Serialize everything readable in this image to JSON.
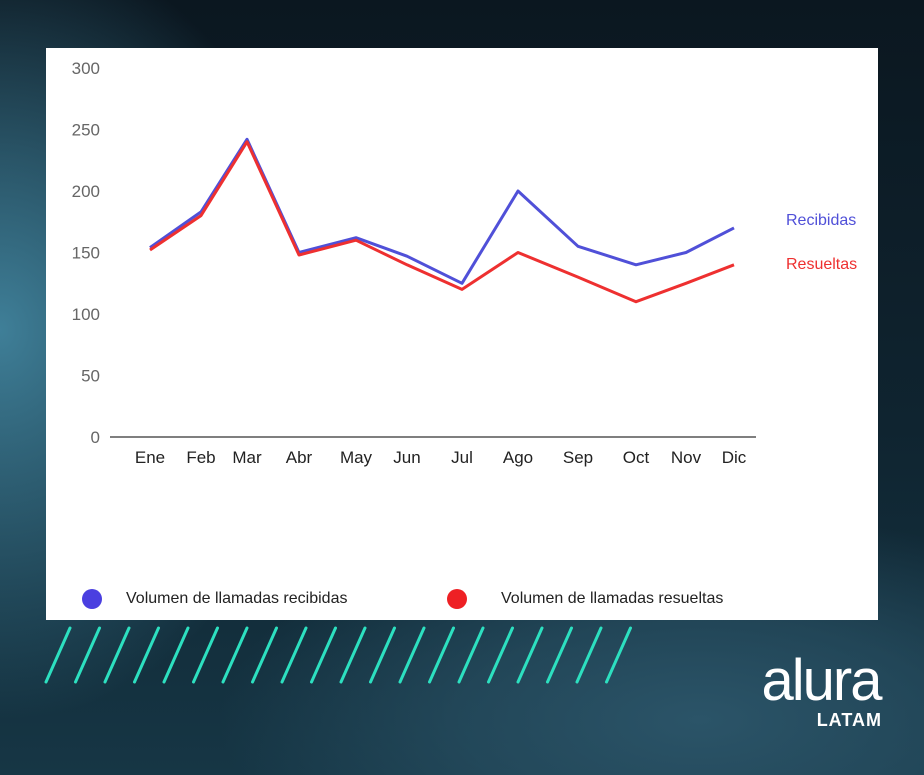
{
  "colors": {
    "recibidas": "#5050d8",
    "resueltas": "#ee3030",
    "legend_recibidas": "#4a3fe0",
    "legend_resueltas": "#ee2024",
    "stripes": "#2de0c0",
    "axis": "#555555"
  },
  "chart_data": {
    "type": "line",
    "categories": [
      "Ene",
      "Feb",
      "Mar",
      "Abr",
      "May",
      "Jun",
      "Jul",
      "Ago",
      "Sep",
      "Oct",
      "Nov",
      "Dic"
    ],
    "yticks": [
      "300",
      "250",
      "200",
      "150",
      "100",
      "50",
      "0"
    ],
    "ylim": [
      0,
      300
    ],
    "grid": false,
    "series": [
      {
        "name": "Recibidas",
        "legend": "Volumen de llamadas recibidas",
        "values": [
          154,
          183,
          242,
          150,
          162,
          147,
          125,
          200,
          155,
          140,
          150,
          170
        ]
      },
      {
        "name": "Resueltas",
        "legend": "Volumen de llamadas resueltas",
        "values": [
          152,
          180,
          240,
          148,
          160,
          140,
          120,
          150,
          130,
          110,
          125,
          140
        ]
      }
    ],
    "legend_position": "bottom"
  },
  "logo": {
    "word": "alura",
    "sub": "LATAM"
  }
}
